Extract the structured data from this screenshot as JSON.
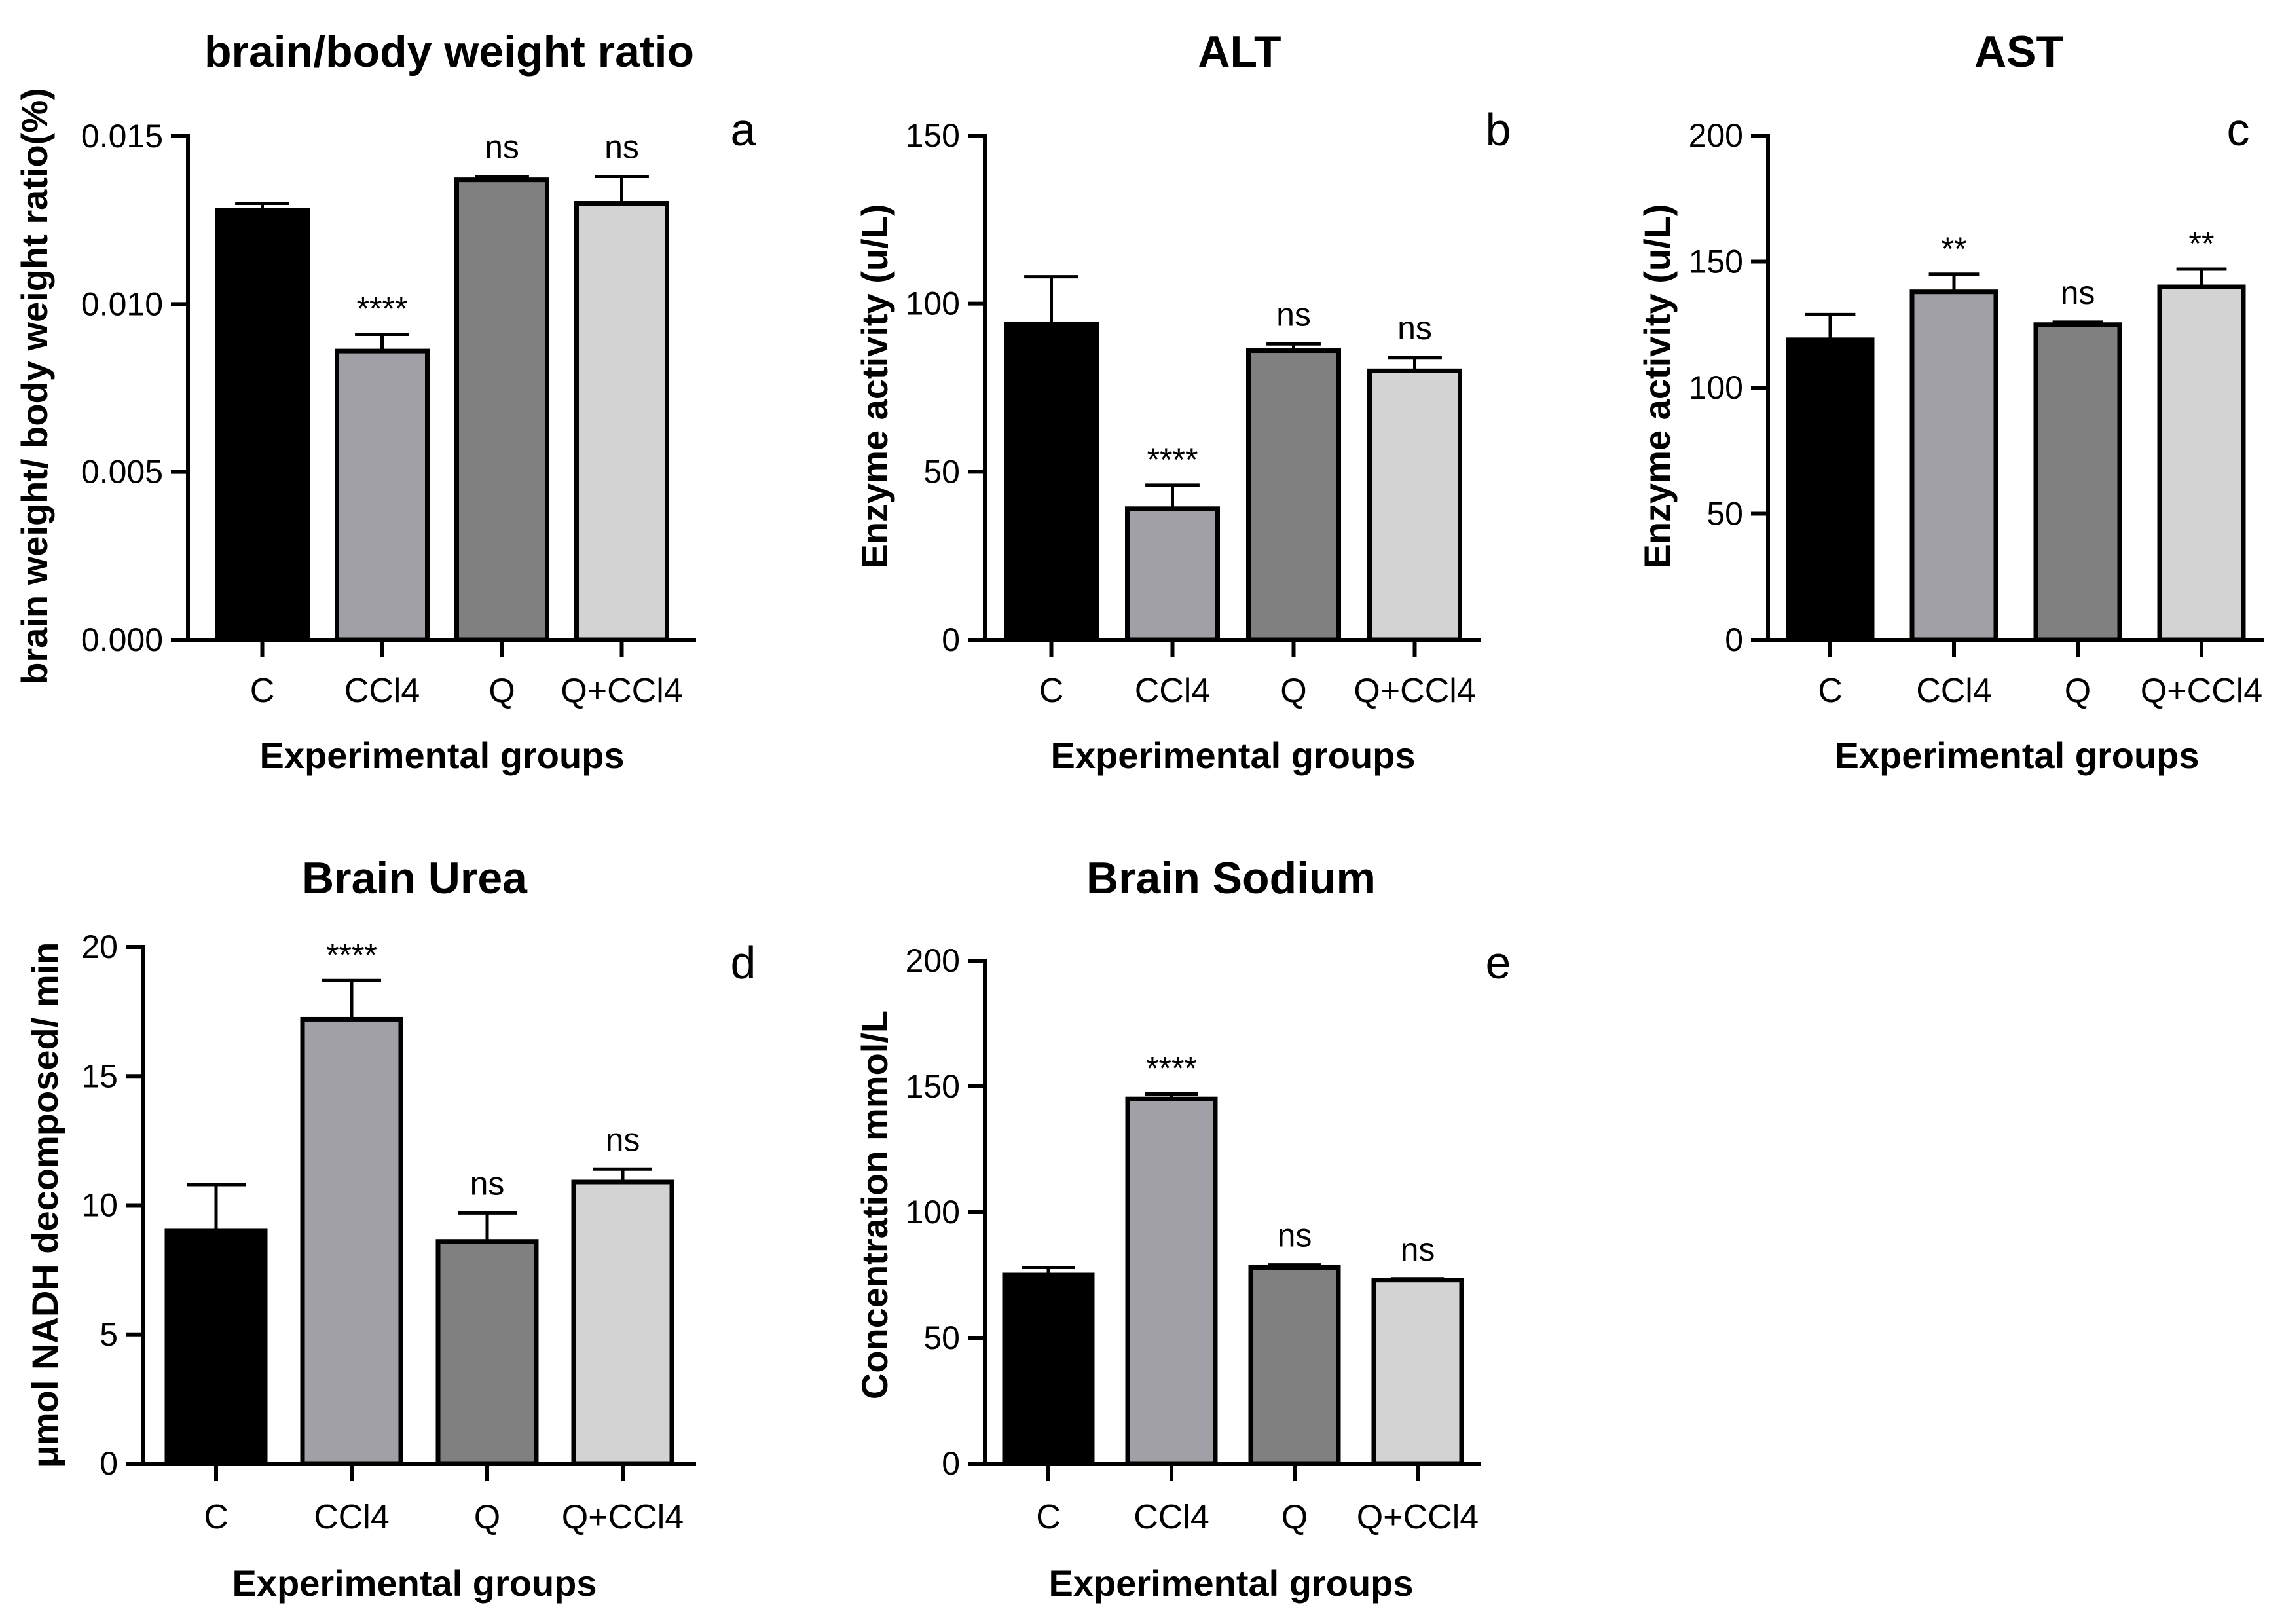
{
  "chart_data": [
    {
      "id": "a",
      "type": "bar",
      "title": "brain/body weight ratio",
      "panel_letter": "a",
      "xlabel": "Experimental groups",
      "ylabel": "brain weight/ body weight ratio(%)",
      "categories": [
        "C",
        "CCl4",
        "Q",
        "Q+CCl4"
      ],
      "values": [
        0.0128,
        0.0086,
        0.0137,
        0.013
      ],
      "errors": [
        0.0002,
        0.0005,
        0.0001,
        0.0008
      ],
      "significance": [
        "",
        "****",
        "ns",
        "ns"
      ],
      "ylim": [
        0,
        0.015
      ],
      "yticks": [
        0,
        0.005,
        0.01,
        0.015
      ],
      "ytick_labels": [
        "0.000",
        "0.005",
        "0.010",
        "0.015"
      ],
      "colors": [
        "#000000",
        "#a0a0a6",
        "#808080",
        "#d3d3d3"
      ]
    },
    {
      "id": "b",
      "type": "bar",
      "title": "ALT",
      "panel_letter": "b",
      "xlabel": "Experimental groups",
      "ylabel": "Enzyme activity (u/L)",
      "categories": [
        "C",
        "CCl4",
        "Q",
        "Q+CCl4"
      ],
      "values": [
        94,
        39,
        86,
        80
      ],
      "errors": [
        14,
        7,
        2,
        4
      ],
      "significance": [
        "",
        "****",
        "ns",
        "ns"
      ],
      "ylim": [
        0,
        150
      ],
      "yticks": [
        0,
        50,
        100,
        150
      ],
      "ytick_labels": [
        "0",
        "50",
        "100",
        "150"
      ],
      "colors": [
        "#000000",
        "#a0a0a6",
        "#808080",
        "#d3d3d3"
      ]
    },
    {
      "id": "c",
      "type": "bar",
      "title": "AST",
      "panel_letter": "c",
      "xlabel": "Experimental groups",
      "ylabel": "Enzyme activity (u/L)",
      "categories": [
        "C",
        "CCl4",
        "Q",
        "Q+CCl4"
      ],
      "values": [
        119,
        138,
        125,
        140
      ],
      "errors": [
        10,
        7,
        1,
        7
      ],
      "significance": [
        "",
        "**",
        "ns",
        "**"
      ],
      "ylim": [
        0,
        200
      ],
      "yticks": [
        0,
        50,
        100,
        150,
        200
      ],
      "ytick_labels": [
        "0",
        "50",
        "100",
        "150",
        "200"
      ],
      "colors": [
        "#000000",
        "#a0a0a6",
        "#808080",
        "#d3d3d3"
      ]
    },
    {
      "id": "d",
      "type": "bar",
      "title": "Brain Urea",
      "panel_letter": "d",
      "xlabel": "Experimental groups",
      "ylabel": "μmol NADH decomposed/ min",
      "categories": [
        "C",
        "CCl4",
        "Q",
        "Q+CCl4"
      ],
      "values": [
        9.0,
        17.2,
        8.6,
        10.9
      ],
      "errors": [
        1.8,
        1.5,
        1.1,
        0.5
      ],
      "significance": [
        "",
        "****",
        "ns",
        "ns"
      ],
      "ylim": [
        0,
        20
      ],
      "yticks": [
        0,
        5,
        10,
        15,
        20
      ],
      "ytick_labels": [
        "0",
        "5",
        "10",
        "15",
        "20"
      ],
      "colors": [
        "#000000",
        "#a0a0a6",
        "#808080",
        "#d3d3d3"
      ]
    },
    {
      "id": "e",
      "type": "bar",
      "title": "Brain Sodium",
      "panel_letter": "e",
      "xlabel": "Experimental groups",
      "ylabel": "Concentration mmol/L",
      "categories": [
        "C",
        "CCl4",
        "Q",
        "Q+CCl4"
      ],
      "values": [
        75,
        145,
        78,
        73
      ],
      "errors": [
        3,
        2,
        1,
        0.5
      ],
      "significance": [
        "",
        "****",
        "ns",
        "ns"
      ],
      "ylim": [
        0,
        200
      ],
      "yticks": [
        0,
        50,
        100,
        150,
        200
      ],
      "ytick_labels": [
        "0",
        "50",
        "100",
        "150",
        "200"
      ],
      "colors": [
        "#000000",
        "#a0a0a6",
        "#808080",
        "#d3d3d3"
      ]
    }
  ]
}
